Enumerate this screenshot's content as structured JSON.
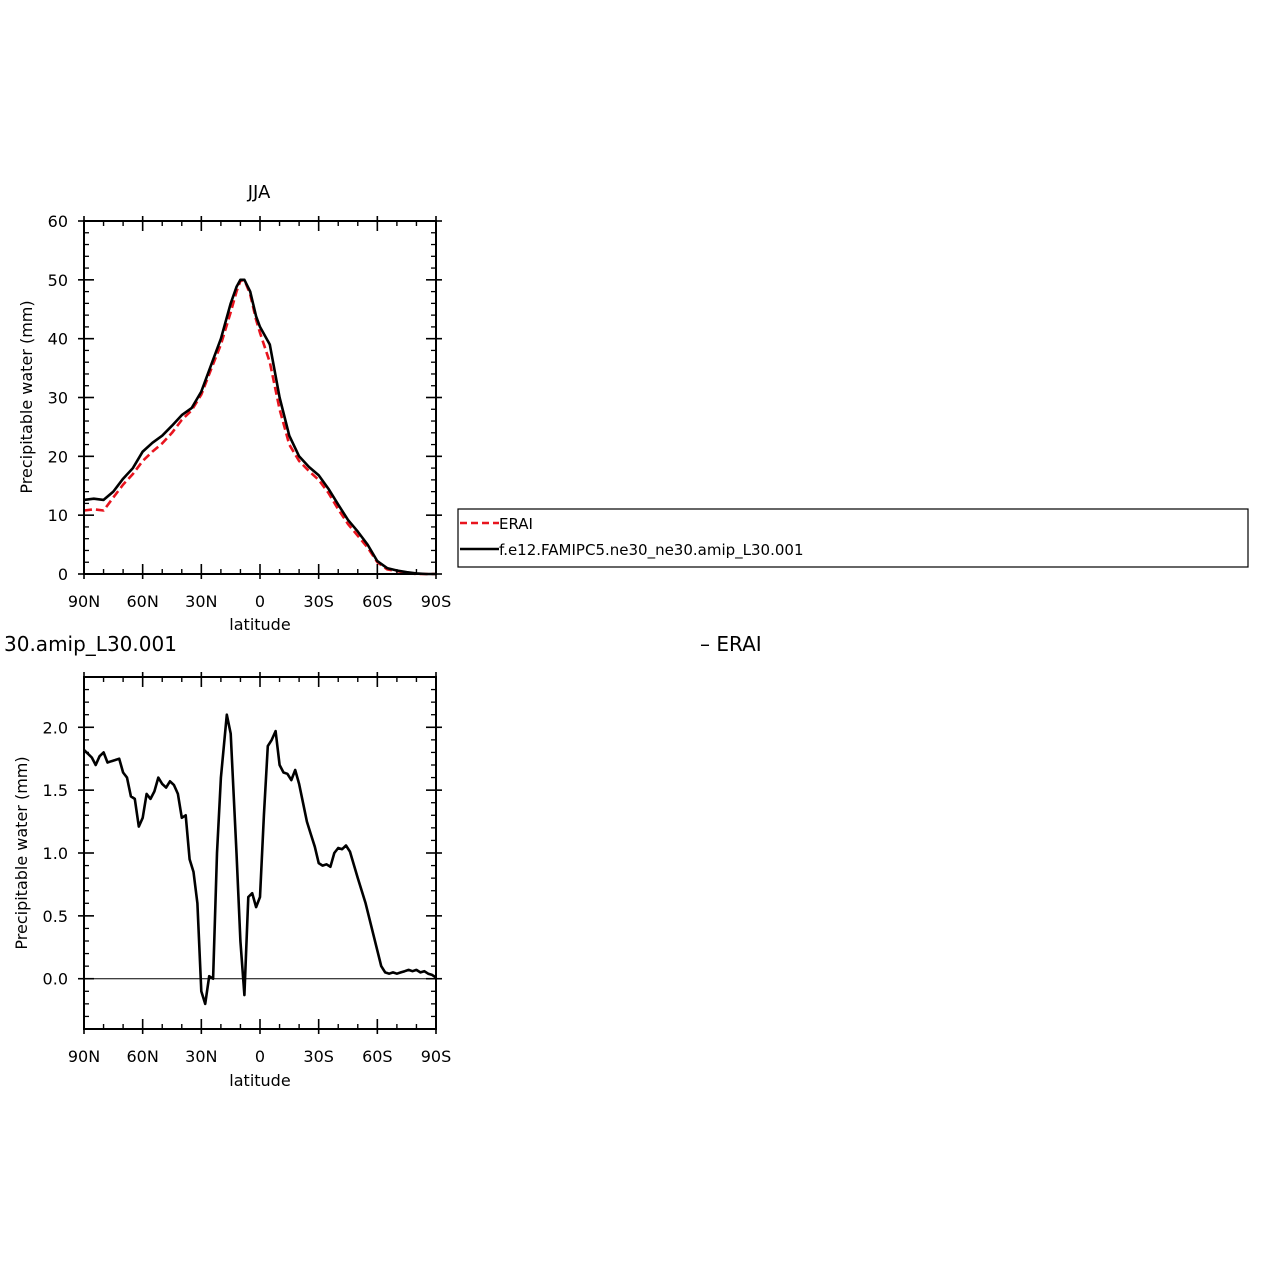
{
  "chart_data": [
    {
      "type": "line",
      "title": "JJA",
      "xlabel": "latitude",
      "ylabel": "Precipitable water (mm)",
      "xlim": [
        90,
        -90
      ],
      "ylim": [
        0,
        60
      ],
      "x_ticks": [
        90,
        60,
        30,
        0,
        -30,
        -60,
        -90
      ],
      "x_tick_labels": [
        "90N",
        "60N",
        "30N",
        "0",
        "30S",
        "60S",
        "90S"
      ],
      "y_ticks": [
        0,
        10,
        20,
        30,
        40,
        50,
        60
      ],
      "y_tick_labels": [
        "0",
        "10",
        "20",
        "30",
        "40",
        "50",
        "60"
      ],
      "legend": {
        "placement": "right",
        "entries": [
          "ERAI",
          "f.e12.FAMIPC5.ne30_ne30.amip_L30.001"
        ]
      },
      "series": [
        {
          "name": "ERAI",
          "color": "#e8141e",
          "dash": "dashed",
          "x": [
            90,
            85,
            80,
            75,
            70,
            65,
            60,
            55,
            50,
            45,
            40,
            35,
            30,
            25,
            20,
            15,
            12,
            10,
            8,
            5,
            2,
            0,
            -5,
            -10,
            -15,
            -20,
            -25,
            -30,
            -35,
            -40,
            -45,
            -50,
            -55,
            -60,
            -65,
            -70,
            -75,
            -80,
            -85,
            -90
          ],
          "values": [
            10.8,
            11.0,
            10.8,
            13.0,
            15.2,
            17.0,
            19.2,
            20.8,
            22.2,
            24.0,
            26.2,
            27.8,
            30.5,
            34.8,
            39.0,
            44.5,
            48.0,
            49.8,
            50.0,
            47.5,
            43.2,
            41.0,
            36.0,
            28.0,
            22.0,
            19.2,
            17.5,
            16.0,
            13.8,
            11.0,
            8.5,
            6.5,
            4.5,
            2.0,
            0.8,
            0.5,
            0.2,
            0.0,
            0.0,
            0.0
          ]
        },
        {
          "name": "f.e12.FAMIPC5.ne30_ne30.amip_L30.001",
          "color": "#000000",
          "dash": "solid",
          "x": [
            90,
            85,
            80,
            75,
            70,
            65,
            60,
            55,
            50,
            45,
            40,
            35,
            30,
            25,
            20,
            15,
            12,
            10,
            8,
            5,
            2,
            0,
            -5,
            -10,
            -15,
            -20,
            -25,
            -30,
            -35,
            -40,
            -45,
            -50,
            -55,
            -60,
            -65,
            -70,
            -75,
            -80,
            -85,
            -90
          ],
          "values": [
            12.6,
            12.8,
            12.6,
            14.0,
            16.2,
            18.0,
            20.8,
            22.3,
            23.5,
            25.2,
            27.0,
            28.2,
            31.0,
            35.5,
            40.0,
            46.0,
            48.8,
            50.0,
            50.0,
            48.0,
            43.8,
            42.0,
            39.0,
            30.0,
            23.5,
            20.0,
            18.2,
            16.8,
            14.5,
            11.8,
            9.2,
            7.2,
            5.0,
            2.2,
            1.0,
            0.6,
            0.3,
            0.1,
            0.0,
            0.0
          ]
        }
      ]
    },
    {
      "type": "line",
      "title": "30.amip_L30.001",
      "title_right": "– ERAI",
      "xlabel": "latitude",
      "ylabel": "Precipitable water (mm)",
      "xlim": [
        90,
        -90
      ],
      "ylim": [
        -0.4,
        2.4
      ],
      "x_ticks": [
        90,
        60,
        30,
        0,
        -30,
        -60,
        -90
      ],
      "x_tick_labels": [
        "90N",
        "60N",
        "30N",
        "0",
        "30S",
        "60S",
        "90S"
      ],
      "y_ticks": [
        0.0,
        0.5,
        1.0,
        1.5,
        2.0
      ],
      "y_tick_labels": [
        "0.0",
        "0.5",
        "1.0",
        "1.5",
        "2.0"
      ],
      "series": [
        {
          "color": "#000000",
          "x": [
            90,
            88,
            86,
            84,
            82,
            80,
            78,
            76,
            74,
            72,
            70,
            68,
            66,
            64,
            62,
            60,
            58,
            56,
            54,
            52,
            50,
            48,
            46,
            44,
            42,
            40,
            38,
            36,
            34,
            32,
            30,
            28,
            26,
            24,
            22,
            20,
            17,
            15,
            12,
            10,
            8,
            6,
            4,
            2,
            0,
            -2,
            -4,
            -6,
            -8,
            -10,
            -12,
            -14,
            -16,
            -18,
            -20,
            -22,
            -24,
            -26,
            -28,
            -30,
            -32,
            -34,
            -36,
            -38,
            -40,
            -42,
            -44,
            -46,
            -50,
            -54,
            -58,
            -62,
            -64,
            -66,
            -68,
            -70,
            -72,
            -74,
            -76,
            -78,
            -80,
            -82,
            -84,
            -86,
            -88,
            -90
          ],
          "values": [
            1.82,
            1.79,
            1.76,
            1.7,
            1.77,
            1.8,
            1.72,
            1.73,
            1.74,
            1.75,
            1.64,
            1.6,
            1.45,
            1.43,
            1.21,
            1.28,
            1.47,
            1.43,
            1.49,
            1.6,
            1.55,
            1.52,
            1.57,
            1.54,
            1.47,
            1.28,
            1.3,
            0.95,
            0.85,
            0.6,
            -0.1,
            -0.2,
            0.02,
            0.0,
            1.0,
            1.6,
            2.1,
            1.95,
            1.0,
            0.3,
            -0.13,
            0.65,
            0.68,
            0.57,
            0.65,
            1.3,
            1.85,
            1.9,
            1.97,
            1.7,
            1.64,
            1.63,
            1.58,
            1.66,
            1.55,
            1.4,
            1.25,
            1.15,
            1.05,
            0.92,
            0.9,
            0.91,
            0.89,
            1.0,
            1.04,
            1.03,
            1.06,
            1.01,
            0.8,
            0.6,
            0.35,
            0.1,
            0.05,
            0.04,
            0.05,
            0.04,
            0.05,
            0.06,
            0.07,
            0.06,
            0.07,
            0.05,
            0.06,
            0.04,
            0.03,
            0.01
          ]
        }
      ]
    }
  ]
}
